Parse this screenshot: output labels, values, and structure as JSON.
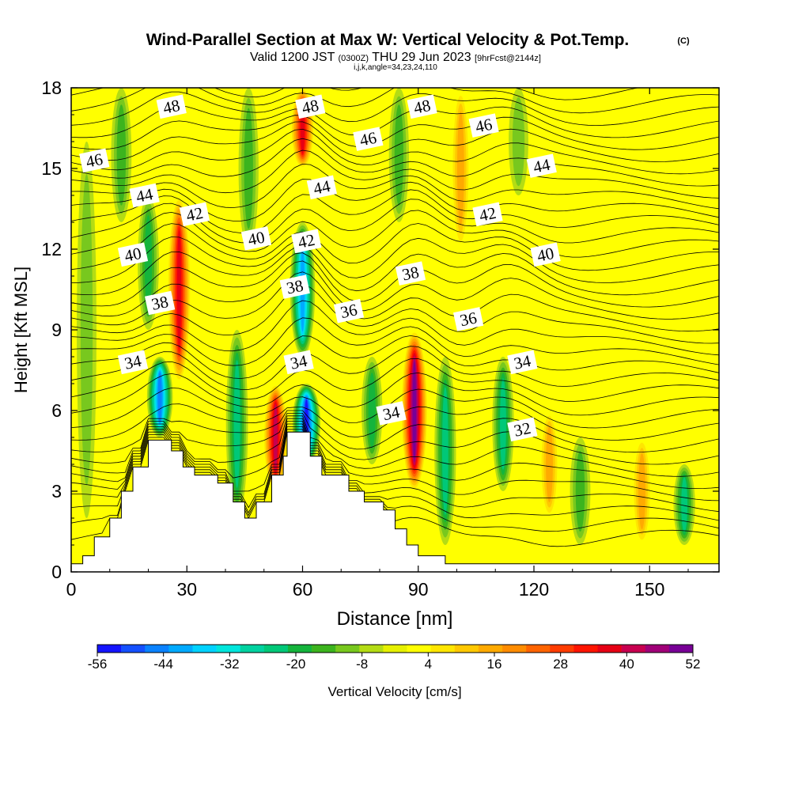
{
  "chart_data": {
    "type": "heatmap",
    "title": "Wind-Parallel Section at Max W: Vertical Velocity & Pot.Temp.",
    "title_mark": "(C)",
    "subtitle": {
      "valid_prefix": "Valid 1200 JST",
      "utc": "(0300Z)",
      "valid_date": "THU 29 Jun 2023",
      "forecast": "[9hrFcst@2144z]"
    },
    "subtitle2": "i,j,k,angle=34,23,24,110",
    "xlabel": "Distance [nm]",
    "ylabel": "Height [Kft MSL]",
    "xlim": [
      0,
      168
    ],
    "ylim": [
      0,
      18
    ],
    "x_ticks": [
      "0",
      "30",
      "60",
      "90",
      "120",
      "150"
    ],
    "y_ticks": [
      "0",
      "3",
      "6",
      "9",
      "12",
      "15",
      "18"
    ],
    "colorbar": {
      "label": "Vertical Velocity [cm/s]",
      "range": [
        -56,
        52
      ],
      "ticks": [
        "-56",
        "-44",
        "-32",
        "-20",
        "-8",
        "4",
        "16",
        "28",
        "40",
        "52"
      ],
      "colors": [
        "#1414ff",
        "#1450ff",
        "#0a82ff",
        "#00aaff",
        "#00d2ff",
        "#00e6dc",
        "#00d2a0",
        "#00c878",
        "#14b43c",
        "#3cb41e",
        "#78c81e",
        "#b4dc14",
        "#e6f000",
        "#ffff00",
        "#ffe600",
        "#ffc800",
        "#ffaa00",
        "#ff8c00",
        "#ff6400",
        "#ff3c00",
        "#ff1400",
        "#e60014",
        "#c80050",
        "#a00078",
        "#780096"
      ]
    },
    "vertical_velocity_features_cm_s": [
      {
        "x": 28,
        "y_bottom": 7,
        "y_top": 14,
        "w": 36
      },
      {
        "x": 23,
        "y_bottom": 5,
        "y_top": 8,
        "w": -44
      },
      {
        "x": 20,
        "y_bottom": 9,
        "y_top": 14,
        "w": -20
      },
      {
        "x": 13,
        "y_bottom": 13,
        "y_top": 18,
        "w": -16
      },
      {
        "x": 4,
        "y_bottom": 2,
        "y_top": 16,
        "w": -12
      },
      {
        "x": 43,
        "y_bottom": 2,
        "y_top": 9,
        "w": -24
      },
      {
        "x": 46,
        "y_bottom": 12,
        "y_top": 18,
        "w": -14
      },
      {
        "x": 53,
        "y_bottom": 3,
        "y_top": 7,
        "w": 40
      },
      {
        "x": 61,
        "y_bottom": 4,
        "y_top": 7,
        "w": -56
      },
      {
        "x": 60,
        "y_bottom": 8,
        "y_top": 13,
        "w": -40
      },
      {
        "x": 60,
        "y_bottom": 15,
        "y_top": 18,
        "w": 36
      },
      {
        "x": 78,
        "y_bottom": 4,
        "y_top": 8,
        "w": -18
      },
      {
        "x": 89,
        "y_bottom": 3,
        "y_top": 9,
        "w": 52
      },
      {
        "x": 97,
        "y_bottom": 1,
        "y_top": 8,
        "w": -22
      },
      {
        "x": 85,
        "y_bottom": 13,
        "y_top": 18,
        "w": -14
      },
      {
        "x": 101,
        "y_bottom": 12,
        "y_top": 18,
        "w": 14
      },
      {
        "x": 112,
        "y_bottom": 3,
        "y_top": 8,
        "w": -22
      },
      {
        "x": 116,
        "y_bottom": 14,
        "y_top": 18,
        "w": -12
      },
      {
        "x": 124,
        "y_bottom": 2,
        "y_top": 6,
        "w": 14
      },
      {
        "x": 132,
        "y_bottom": 1,
        "y_top": 5,
        "w": -16
      },
      {
        "x": 148,
        "y_bottom": 1,
        "y_top": 5,
        "w": 16
      },
      {
        "x": 159,
        "y_bottom": 1,
        "y_top": 4,
        "w": -22
      }
    ],
    "terrain_kft": [
      {
        "x": 0,
        "y": 0.3
      },
      {
        "x": 3,
        "y": 0.6
      },
      {
        "x": 6,
        "y": 1.3
      },
      {
        "x": 10,
        "y": 2.0
      },
      {
        "x": 13,
        "y": 3.0
      },
      {
        "x": 16,
        "y": 3.9
      },
      {
        "x": 20,
        "y": 4.9
      },
      {
        "x": 26,
        "y": 4.5
      },
      {
        "x": 29,
        "y": 3.9
      },
      {
        "x": 32,
        "y": 3.6
      },
      {
        "x": 38,
        "y": 3.3
      },
      {
        "x": 42,
        "y": 2.6
      },
      {
        "x": 45,
        "y": 2.0
      },
      {
        "x": 48,
        "y": 2.6
      },
      {
        "x": 52,
        "y": 3.6
      },
      {
        "x": 55,
        "y": 4.3
      },
      {
        "x": 56,
        "y": 5.2
      },
      {
        "x": 62,
        "y": 4.3
      },
      {
        "x": 65,
        "y": 3.6
      },
      {
        "x": 72,
        "y": 3.0
      },
      {
        "x": 76,
        "y": 2.6
      },
      {
        "x": 81,
        "y": 2.3
      },
      {
        "x": 84,
        "y": 1.6
      },
      {
        "x": 87,
        "y": 1.0
      },
      {
        "x": 90,
        "y": 0.6
      },
      {
        "x": 97,
        "y": 0.3
      },
      {
        "x": 168,
        "y": 0.3
      }
    ],
    "pot_temp_contours": [
      {
        "label": "48",
        "x": 26,
        "y": 17.3
      },
      {
        "label": "48",
        "x": 62,
        "y": 17.3
      },
      {
        "label": "48",
        "x": 91,
        "y": 17.3
      },
      {
        "label": "46",
        "x": 6,
        "y": 15.3
      },
      {
        "label": "46",
        "x": 77,
        "y": 16.1
      },
      {
        "label": "46",
        "x": 107,
        "y": 16.6
      },
      {
        "label": "44",
        "x": 19,
        "y": 14.0
      },
      {
        "label": "44",
        "x": 65,
        "y": 14.3
      },
      {
        "label": "44",
        "x": 122,
        "y": 15.1
      },
      {
        "label": "42",
        "x": 32,
        "y": 13.3
      },
      {
        "label": "42",
        "x": 61,
        "y": 12.3
      },
      {
        "label": "42",
        "x": 108,
        "y": 13.3
      },
      {
        "label": "40",
        "x": 16,
        "y": 11.8
      },
      {
        "label": "40",
        "x": 48,
        "y": 12.4
      },
      {
        "label": "40",
        "x": 123,
        "y": 11.8
      },
      {
        "label": "38",
        "x": 23,
        "y": 10.0
      },
      {
        "label": "38",
        "x": 58,
        "y": 10.6
      },
      {
        "label": "38",
        "x": 88,
        "y": 11.1
      },
      {
        "label": "36",
        "x": 72,
        "y": 9.7
      },
      {
        "label": "36",
        "x": 103,
        "y": 9.4
      },
      {
        "label": "34",
        "x": 16,
        "y": 7.8
      },
      {
        "label": "34",
        "x": 59,
        "y": 7.8
      },
      {
        "label": "34",
        "x": 83,
        "y": 5.9
      },
      {
        "label": "34",
        "x": 117,
        "y": 7.8
      },
      {
        "label": "32",
        "x": 117,
        "y": 5.3
      }
    ]
  }
}
